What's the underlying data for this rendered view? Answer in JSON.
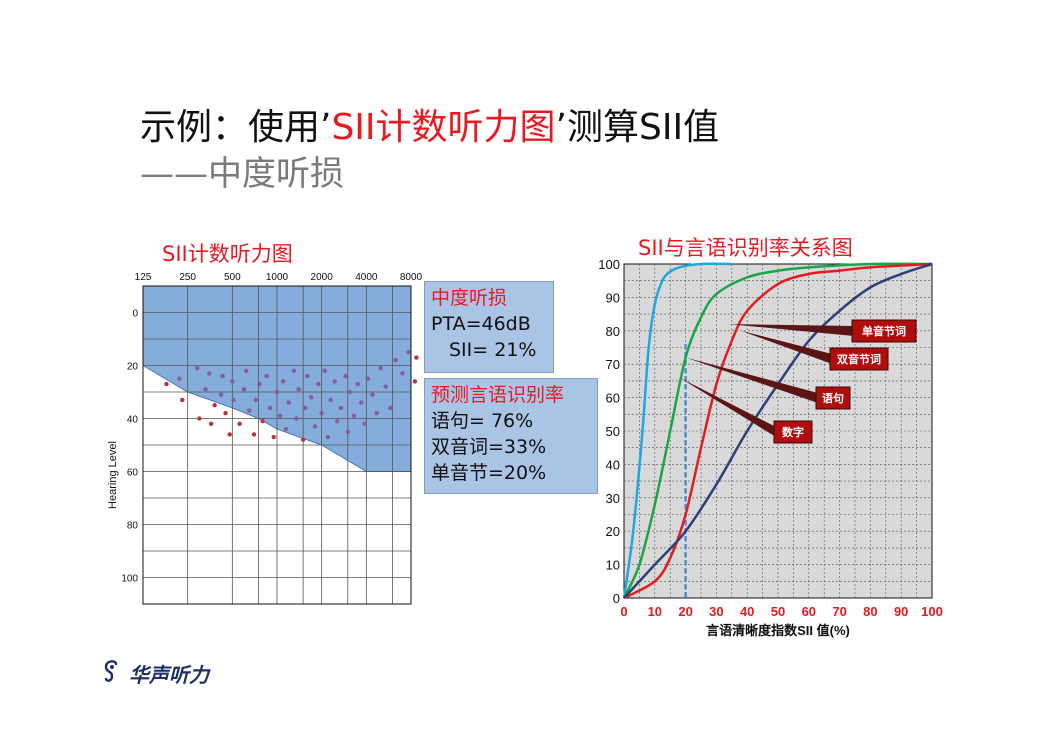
{
  "slide": {
    "title_black_1": "示例：使用’",
    "title_red": "SII计数听力图",
    "title_black_2": "’测算SII值",
    "subtitle": "——中度听损"
  },
  "info_box_1": {
    "heading": "中度听损",
    "pta": "PTA=46dB",
    "sii": "SII= 21%"
  },
  "info_box_2": {
    "heading": "预测言语识别率",
    "line1": "语句= 76%",
    "line2": "双音词=33%",
    "line3": "单音节=20%"
  },
  "logo": {
    "text": "华声听力",
    "icon": "ear-icon"
  },
  "colors": {
    "title_red": "#e8191f",
    "audiogram_fill": "#6f9fd6",
    "dot_red": "#b5343c",
    "dot_purple": "#8a5a9e",
    "box_fill": "#a9c4e4",
    "label_box": "#b00e0e",
    "curve_cyan": "#1fa7e0",
    "curve_green": "#1aa54a",
    "curve_red": "#e21d1d",
    "curve_navy": "#2f3f78"
  },
  "chart_data": [
    {
      "type": "scatter",
      "title": "SII计数听力图",
      "ylabel": "Hearing Level",
      "x_ticks": [
        "125",
        "250",
        "500",
        "1000",
        "2000",
        "4000",
        "8000"
      ],
      "x_scale": "log",
      "y_ticks": [
        0,
        20,
        40,
        60,
        80,
        100
      ],
      "ylim": [
        -10,
        110
      ],
      "y_inverted": true,
      "grid": true,
      "hearing_loss_shaded_region": {
        "upper_boundary_db": -10,
        "lower_boundary": [
          {
            "hz": 125,
            "db": 20
          },
          {
            "hz": 250,
            "db": 30
          },
          {
            "hz": 500,
            "db": 36
          },
          {
            "hz": 750,
            "db": 40
          },
          {
            "hz": 1000,
            "db": 44
          },
          {
            "hz": 2000,
            "db": 50
          },
          {
            "hz": 4000,
            "db": 60
          },
          {
            "hz": 8000,
            "db": 60
          }
        ]
      },
      "count_dots": [
        {
          "hz": 180,
          "db": 27
        },
        {
          "hz": 220,
          "db": 25
        },
        {
          "hz": 230,
          "db": 33
        },
        {
          "hz": 290,
          "db": 21
        },
        {
          "hz": 300,
          "db": 40
        },
        {
          "hz": 330,
          "db": 29
        },
        {
          "hz": 350,
          "db": 23
        },
        {
          "hz": 360,
          "db": 42
        },
        {
          "hz": 380,
          "db": 35
        },
        {
          "hz": 420,
          "db": 31
        },
        {
          "hz": 430,
          "db": 24
        },
        {
          "hz": 450,
          "db": 38
        },
        {
          "hz": 480,
          "db": 46
        },
        {
          "hz": 500,
          "db": 26
        },
        {
          "hz": 510,
          "db": 33
        },
        {
          "hz": 560,
          "db": 42
        },
        {
          "hz": 600,
          "db": 29
        },
        {
          "hz": 620,
          "db": 22
        },
        {
          "hz": 650,
          "db": 37
        },
        {
          "hz": 700,
          "db": 46
        },
        {
          "hz": 720,
          "db": 33
        },
        {
          "hz": 760,
          "db": 27
        },
        {
          "hz": 800,
          "db": 41
        },
        {
          "hz": 850,
          "db": 24
        },
        {
          "hz": 900,
          "db": 36
        },
        {
          "hz": 950,
          "db": 47
        },
        {
          "hz": 1000,
          "db": 30
        },
        {
          "hz": 1050,
          "db": 39
        },
        {
          "hz": 1100,
          "db": 26
        },
        {
          "hz": 1150,
          "db": 44
        },
        {
          "hz": 1200,
          "db": 34
        },
        {
          "hz": 1300,
          "db": 22
        },
        {
          "hz": 1350,
          "db": 40
        },
        {
          "hz": 1400,
          "db": 29
        },
        {
          "hz": 1500,
          "db": 48
        },
        {
          "hz": 1550,
          "db": 36
        },
        {
          "hz": 1600,
          "db": 24
        },
        {
          "hz": 1700,
          "db": 32
        },
        {
          "hz": 1800,
          "db": 43
        },
        {
          "hz": 1900,
          "db": 27
        },
        {
          "hz": 2000,
          "db": 38
        },
        {
          "hz": 2100,
          "db": 22
        },
        {
          "hz": 2200,
          "db": 47
        },
        {
          "hz": 2300,
          "db": 33
        },
        {
          "hz": 2450,
          "db": 26
        },
        {
          "hz": 2550,
          "db": 41
        },
        {
          "hz": 2700,
          "db": 36
        },
        {
          "hz": 2900,
          "db": 24
        },
        {
          "hz": 3000,
          "db": 45
        },
        {
          "hz": 3100,
          "db": 30
        },
        {
          "hz": 3300,
          "db": 39
        },
        {
          "hz": 3500,
          "db": 27
        },
        {
          "hz": 3700,
          "db": 34
        },
        {
          "hz": 3900,
          "db": 42
        },
        {
          "hz": 4100,
          "db": 25
        },
        {
          "hz": 4400,
          "db": 31
        },
        {
          "hz": 4700,
          "db": 38
        },
        {
          "hz": 5000,
          "db": 21
        },
        {
          "hz": 5400,
          "db": 28
        },
        {
          "hz": 5800,
          "db": 36
        },
        {
          "hz": 6300,
          "db": 18
        },
        {
          "hz": 7000,
          "db": 23
        },
        {
          "hz": 7700,
          "db": 15
        },
        {
          "hz": 8500,
          "db": 26
        },
        {
          "hz": 8700,
          "db": 17
        }
      ]
    },
    {
      "type": "line",
      "title": "SII与言语识别率关系图",
      "xlabel": "言语清晰度指数SII 值(%)",
      "ylabel": "",
      "xlim": [
        0,
        100
      ],
      "ylim": [
        0,
        100
      ],
      "x_ticks": [
        0,
        10,
        20,
        30,
        40,
        50,
        60,
        70,
        80,
        90,
        100
      ],
      "y_ticks": [
        0,
        10,
        20,
        30,
        40,
        50,
        60,
        70,
        80,
        90,
        100
      ],
      "grid": true,
      "reference_line_x": 20,
      "series": [
        {
          "color": "#1fa7e0",
          "x": [
            0,
            3,
            6,
            8,
            10,
            12,
            14,
            18,
            25,
            35
          ],
          "y": [
            0,
            20,
            50,
            75,
            88,
            94,
            97,
            99,
            100,
            100
          ]
        },
        {
          "color": "#1aa54a",
          "x": [
            0,
            5,
            10,
            15,
            20,
            25,
            30,
            40,
            50,
            60,
            80,
            100
          ],
          "y": [
            0,
            10,
            28,
            50,
            72,
            84,
            91,
            96,
            98,
            99,
            100,
            100
          ]
        },
        {
          "color": "#e21d1d",
          "x": [
            0,
            10,
            15,
            20,
            25,
            30,
            35,
            40,
            50,
            60,
            70,
            80,
            100
          ],
          "y": [
            0,
            5,
            12,
            25,
            45,
            64,
            77,
            86,
            94,
            97,
            98,
            99,
            100
          ]
        },
        {
          "color": "#2f3f78",
          "x": [
            0,
            10,
            20,
            30,
            40,
            50,
            60,
            70,
            80,
            90,
            100
          ],
          "y": [
            0,
            10,
            20,
            34,
            50,
            64,
            77,
            86,
            93,
            97,
            100
          ]
        }
      ],
      "annotations": [
        "单音节词",
        "双音节词",
        "语句",
        "数字"
      ]
    }
  ]
}
